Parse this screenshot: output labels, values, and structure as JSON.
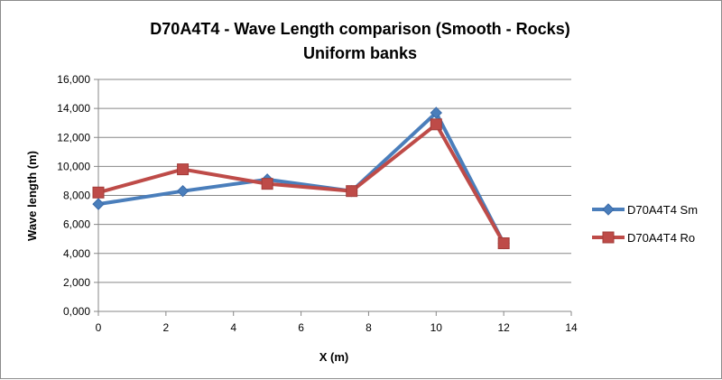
{
  "chart_data": {
    "type": "line",
    "title_line1": "D70A4T4 - Wave Length comparison (Smooth - Rocks)",
    "title_line2": "Uniform banks",
    "xlabel": "X (m)",
    "ylabel": "Wave length (m)",
    "xlim": [
      0,
      14
    ],
    "ylim": [
      0,
      16000
    ],
    "x_ticks": [
      "0",
      "2",
      "4",
      "6",
      "8",
      "10",
      "12",
      "14"
    ],
    "y_ticks": [
      "0,000",
      "2,000",
      "4,000",
      "6,000",
      "8,000",
      "10,000",
      "12,000",
      "14,000",
      "16,000"
    ],
    "grid": true,
    "legend_position": "right",
    "series": [
      {
        "name": "D70A4T4 Sm",
        "color": "#4a7ebb",
        "marker": "diamond",
        "x": [
          0,
          2.5,
          5,
          7.5,
          10,
          12
        ],
        "y": [
          7400,
          8300,
          9100,
          8300,
          13700,
          4700
        ]
      },
      {
        "name": "D70A4T4 Ro",
        "color": "#be4b48",
        "marker": "square",
        "x": [
          0,
          2.5,
          5,
          7.5,
          10,
          12
        ],
        "y": [
          8200,
          9800,
          8800,
          8300,
          12900,
          4700
        ]
      }
    ]
  }
}
